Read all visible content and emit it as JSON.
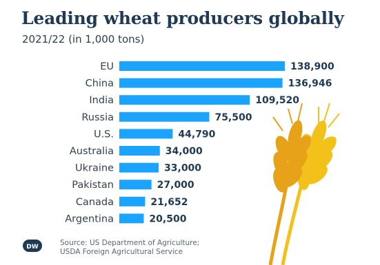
{
  "title": "Leading wheat producers globally",
  "subtitle": "2021/22 (in 1,000 tons)",
  "source_line1": "Source: US Department of Agriculture;",
  "source_line2": "USDA Foreign Agricultural Service",
  "logo_text": "DW",
  "colors": {
    "bar": "#1aa3ff",
    "title": "#1f3a57",
    "value": "#1f3a57"
  },
  "chart_data": {
    "type": "bar",
    "orientation": "horizontal",
    "title": "Leading wheat producers globally",
    "subtitle": "2021/22 (in 1,000 tons)",
    "categories": [
      "EU",
      "China",
      "India",
      "Russia",
      "U.S.",
      "Australia",
      "Ukraine",
      "Pakistan",
      "Canada",
      "Argentina"
    ],
    "values": [
      138900,
      136946,
      109520,
      75500,
      44790,
      34000,
      33000,
      27000,
      21652,
      20500
    ],
    "value_labels": [
      "138,900",
      "136,946",
      "109,520",
      "75,500",
      "44,790",
      "34,000",
      "33,000",
      "27,000",
      "21,652",
      "20,500"
    ],
    "xlim": [
      0,
      138900
    ],
    "grid": false,
    "legend": "none"
  }
}
